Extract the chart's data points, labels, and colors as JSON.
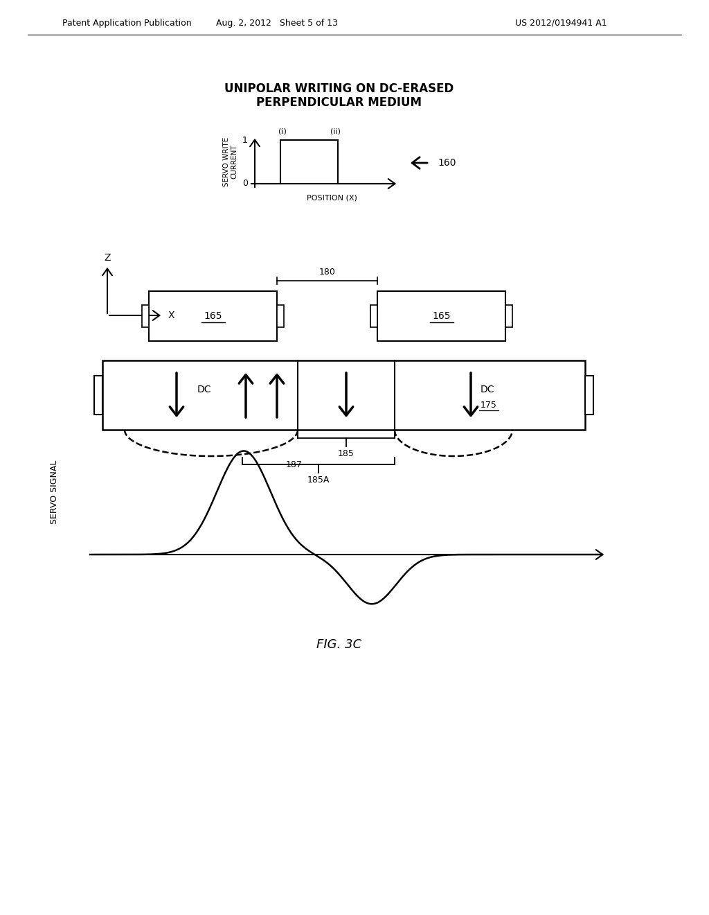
{
  "title_line1": "UNIPOLAR WRITING ON DC-ERASED",
  "title_line2": "PERPENDICULAR MEDIUM",
  "fig_label": "FIG. 3C",
  "header_left": "Patent Application Publication",
  "header_mid": "Aug. 2, 2012   Sheet 5 of 13",
  "header_right": "US 2012/0194941 A1",
  "bg_color": "#ffffff",
  "text_color": "#000000",
  "label_160": "160",
  "label_165": "165",
  "label_175": "175",
  "label_180": "180",
  "label_185": "185",
  "label_185A": "185A",
  "label_187": "187"
}
